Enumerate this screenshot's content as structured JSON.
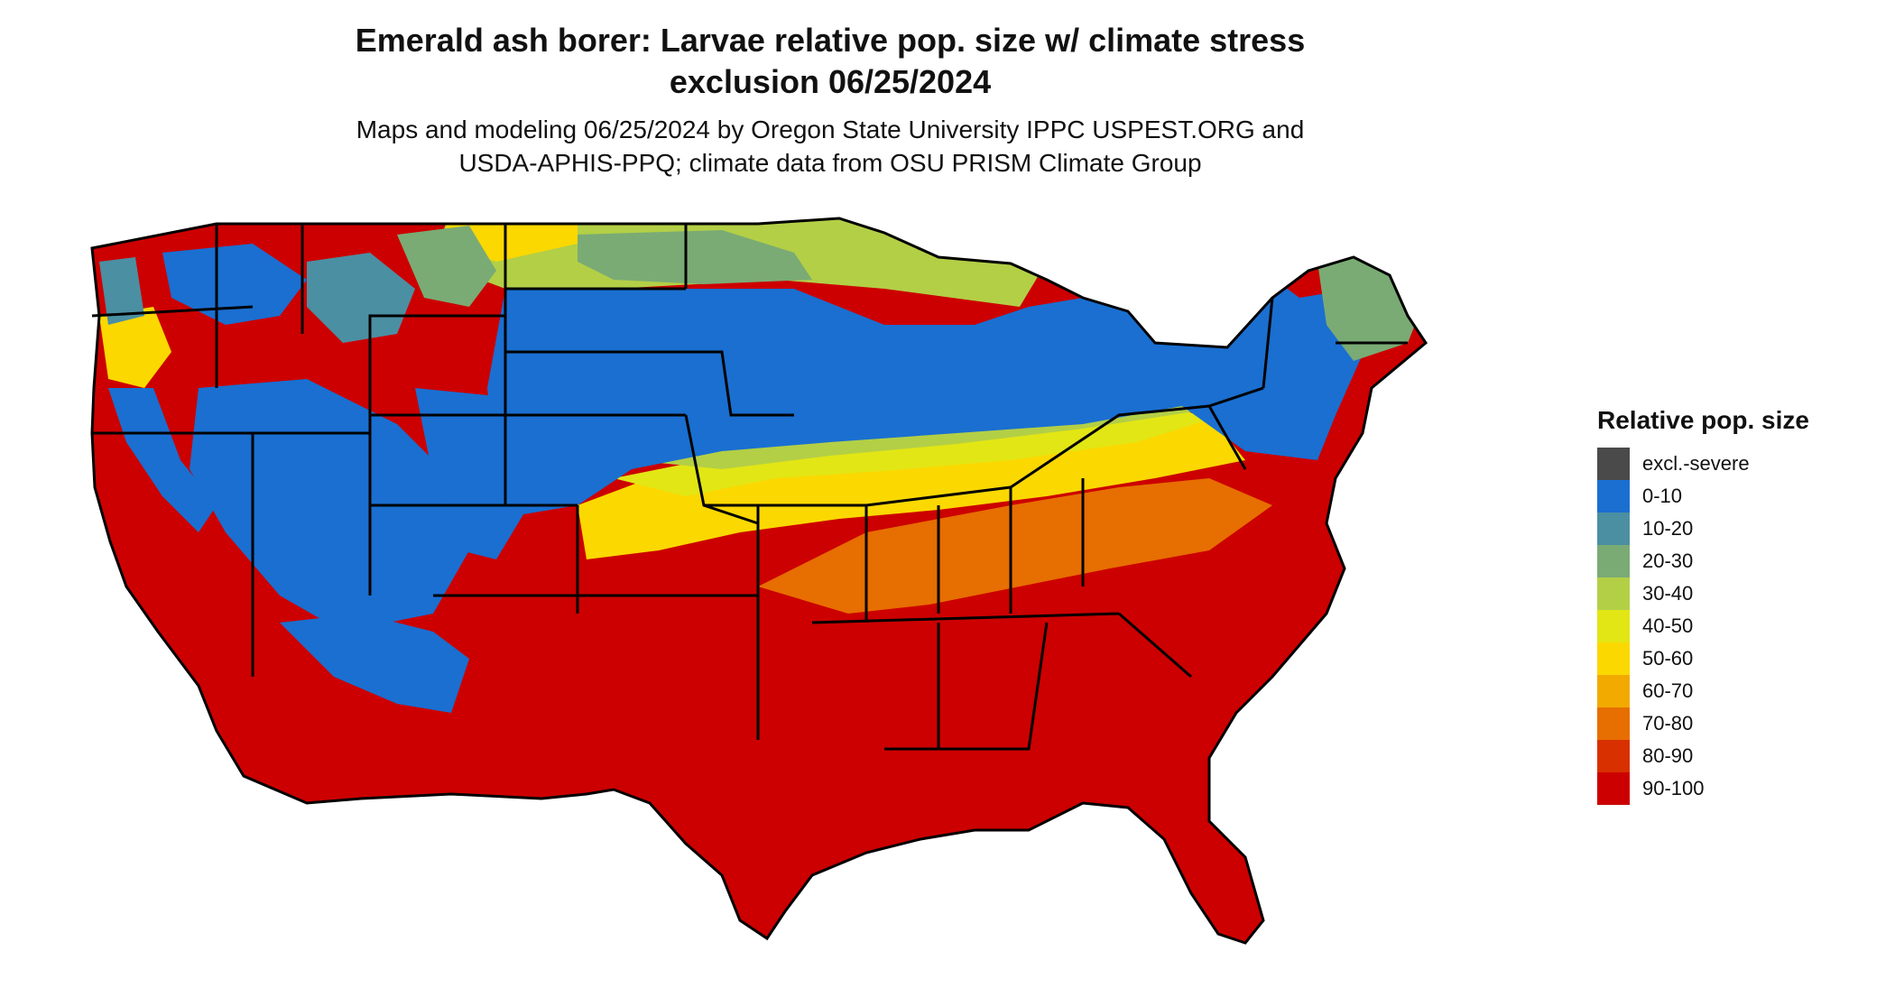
{
  "title_line1": "Emerald ash borer: Larvae relative pop. size w/ climate stress",
  "title_line2": "exclusion 06/25/2024",
  "subtitle_line1": "Maps and modeling 06/25/2024 by Oregon State University IPPC USPEST.ORG and",
  "subtitle_line2": "USDA-APHIS-PPQ; climate data from OSU PRISM Climate Group",
  "legend": {
    "title": "Relative pop. size",
    "items": [
      {
        "label": "excl.-severe",
        "color": "#4a4a4a"
      },
      {
        "label": "0-10",
        "color": "#1a6fd1"
      },
      {
        "label": "10-20",
        "color": "#4b8fa3"
      },
      {
        "label": "20-30",
        "color": "#7aab74"
      },
      {
        "label": "30-40",
        "color": "#b3cf46"
      },
      {
        "label": "40-50",
        "color": "#e2e614"
      },
      {
        "label": "50-60",
        "color": "#fbd800"
      },
      {
        "label": "60-70",
        "color": "#f2aa00"
      },
      {
        "label": "70-80",
        "color": "#e76e00"
      },
      {
        "label": "80-90",
        "color": "#d93000"
      },
      {
        "label": "90-100",
        "color": "#cc0000"
      }
    ]
  },
  "map": {
    "region": "contiguous-united-states",
    "colors": {
      "blue": "#1a6fd1",
      "teal": "#4b8fa3",
      "green": "#7aab74",
      "lime": "#b3cf46",
      "yellow": "#fbd800",
      "orange": "#e76e00",
      "red": "#cc0000",
      "border": "#000000"
    }
  }
}
